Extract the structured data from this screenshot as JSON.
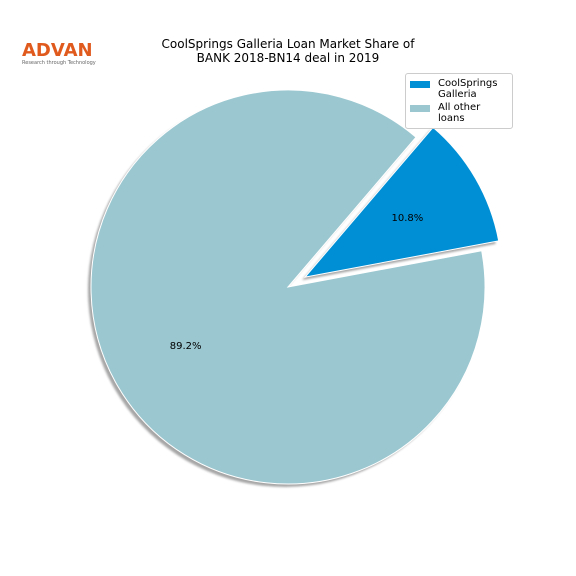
{
  "logo": {
    "name": "ADVAN",
    "tagline": "Research through Technology"
  },
  "chart_data": {
    "type": "pie",
    "title": "CoolSprings Galleria Loan Market Share of\nBANK 2018-BN14 deal in 2019",
    "categories": [
      "CoolSprings\nGalleria",
      "All other loans"
    ],
    "values": [
      10.8,
      89.2
    ],
    "value_labels": [
      "10.8%",
      "89.2%"
    ],
    "colors": [
      "#008fd5",
      "#9ac7d0"
    ],
    "explode": [
      0.1,
      0
    ],
    "startangle": 10.6,
    "shadow": true,
    "legend": "upper right"
  }
}
